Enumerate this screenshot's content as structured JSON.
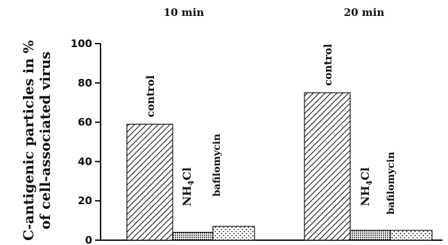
{
  "chart_data": {
    "type": "bar",
    "ylabel_line1": "C-antigenic particles in %",
    "ylabel_line2": "of cell-associated virus",
    "xlabel": "",
    "ylim": [
      0,
      100
    ],
    "yticks": [
      0,
      20,
      40,
      60,
      80,
      100
    ],
    "grid": false,
    "groups": [
      {
        "label": "10 min",
        "bars": [
          {
            "label": "control",
            "value": 59,
            "pattern": "diagonal"
          },
          {
            "label": "NH4Cl",
            "value": 4,
            "pattern": "crosshatch"
          },
          {
            "label": "bafilomycin",
            "value": 7,
            "pattern": "dots"
          }
        ]
      },
      {
        "label": "20 min",
        "bars": [
          {
            "label": "control",
            "value": 75,
            "pattern": "diagonal"
          },
          {
            "label": "NH4Cl",
            "value": 5,
            "pattern": "crosshatch"
          },
          {
            "label": "bafilomycin",
            "value": 5,
            "pattern": "dots"
          }
        ]
      }
    ]
  }
}
